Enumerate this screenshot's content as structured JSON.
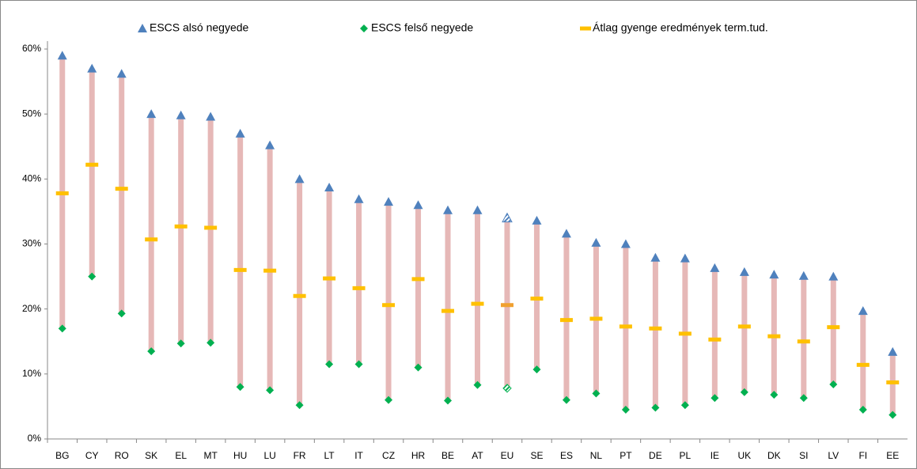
{
  "chart_data": {
    "type": "range",
    "categories": [
      "BG",
      "CY",
      "RO",
      "SK",
      "EL",
      "MT",
      "HU",
      "LU",
      "FR",
      "LT",
      "IT",
      "CZ",
      "HR",
      "BE",
      "AT",
      "EU",
      "SE",
      "ES",
      "NL",
      "PT",
      "DE",
      "PL",
      "IE",
      "UK",
      "DK",
      "SI",
      "LV",
      "FI",
      "EE"
    ],
    "series": [
      {
        "name": "ESCS alsó negyede",
        "color": "#4f81bd",
        "marker": "triangle",
        "values": [
          59,
          57,
          56.2,
          50,
          49.8,
          49.6,
          47,
          45.2,
          40,
          38.7,
          36.9,
          36.5,
          36,
          35.2,
          35.2,
          34,
          33.6,
          31.6,
          30.2,
          30,
          27.9,
          27.8,
          26.3,
          25.7,
          25.3,
          25.1,
          25,
          19.7,
          13.4
        ]
      },
      {
        "name": "ESCS felső negyede",
        "color": "#00b050",
        "marker": "diamond",
        "values": [
          17,
          25,
          19.3,
          13.5,
          14.7,
          14.8,
          8,
          7.5,
          5.2,
          11.5,
          11.5,
          6,
          11,
          5.9,
          8.3,
          7.8,
          10.7,
          6,
          7,
          4.5,
          4.8,
          5.2,
          6.3,
          7.2,
          6.8,
          6.3,
          8.4,
          4.5,
          3.7
        ]
      },
      {
        "name": "Átlag gyenge eredmények term.tud.",
        "color": "#ffc000",
        "marker": "dash",
        "values": [
          37.8,
          42.2,
          38.5,
          30.7,
          32.7,
          32.5,
          26,
          25.9,
          22,
          24.7,
          23.2,
          20.6,
          24.6,
          19.7,
          20.8,
          20.6,
          21.6,
          18.3,
          18.5,
          17.3,
          17,
          16.2,
          15.3,
          17.3,
          15.8,
          15,
          17.2,
          11.4,
          8.7
        ]
      }
    ],
    "range_color": "#e6b8b7",
    "hatched_categories": [
      "EU"
    ],
    "ylim": [
      0,
      60
    ],
    "yticks": [
      {
        "value": 0,
        "label": "0%"
      },
      {
        "value": 10,
        "label": "10%"
      },
      {
        "value": 20,
        "label": "20%"
      },
      {
        "value": 30,
        "label": "30%"
      },
      {
        "value": 40,
        "label": "40%"
      },
      {
        "value": 50,
        "label": "50%"
      },
      {
        "value": 60,
        "label": "60%"
      }
    ],
    "legend": "top"
  }
}
